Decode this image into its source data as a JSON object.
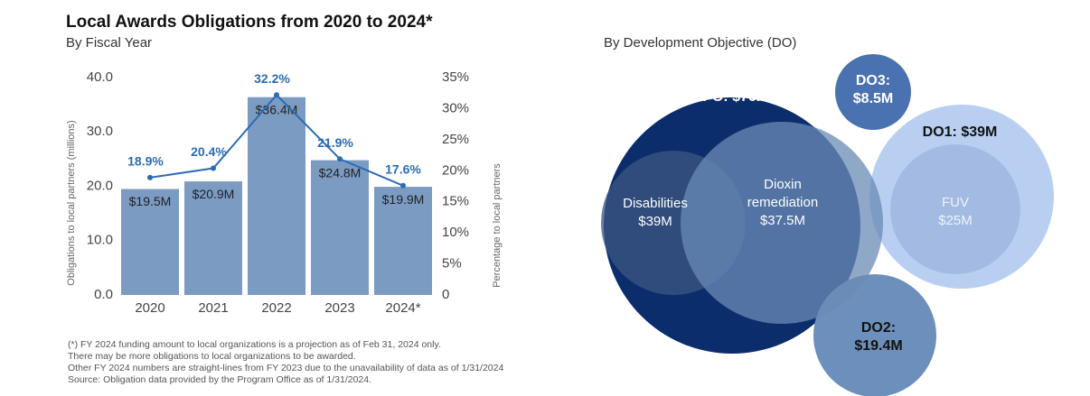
{
  "chart_data": [
    {
      "type": "bar_line",
      "title": "Local Awards Obligations from 2020 to 2024*",
      "subtitle": "By Fiscal Year",
      "y_label": "Obligations to local partners (millions)",
      "y2_label": "Percentage to local partners",
      "categories": [
        "2020",
        "2021",
        "2022",
        "2023",
        "2024*"
      ],
      "series": [
        {
          "name": "Obligations",
          "color": "#7b9bc3",
          "values": [
            19.5,
            20.9,
            36.4,
            24.8,
            19.9
          ],
          "value_labels": [
            "$19.5M",
            "$20.9M",
            "$36.4M",
            "$24.8M",
            "$19.9M"
          ]
        },
        {
          "name": "Percentage",
          "color": "#2b6cb3",
          "axis": "y2",
          "values": [
            18.9,
            20.4,
            32.2,
            21.9,
            17.6
          ],
          "value_labels": [
            "18.9%",
            "20.4%",
            "32.2%",
            "21.9%",
            "17.6%"
          ]
        }
      ],
      "ylim": [
        0,
        40
      ],
      "yticks": [
        {
          "value": 0,
          "label": "0.0"
        },
        {
          "value": 10,
          "label": "10.0"
        },
        {
          "value": 20,
          "label": "20.0"
        },
        {
          "value": 30,
          "label": "30.0"
        },
        {
          "value": 40,
          "label": "40.0"
        }
      ],
      "y2lim": [
        0,
        35
      ],
      "y2ticks": [
        0,
        {
          "value": 5,
          "label": "5%"
        },
        {
          "value": 10,
          "label": "10%"
        },
        {
          "value": 15,
          "label": "15%"
        },
        {
          "value": 20,
          "label": "20%"
        },
        {
          "value": 25,
          "label": "25%"
        },
        {
          "value": 30,
          "label": "30%"
        },
        {
          "value": 35,
          "label": "35%"
        }
      ],
      "notes": [
        "(*) FY 2024 funding amount to local organizations is a projection as of Feb 31, 2024 only.",
        "There may be more obligations to local organizations to be awarded.",
        "Other FY 2024 numbers are straight-lines from FY 2023 due to the unavailability of data as of 1/31/2024",
        "Source: Obligation data provided by the Program Office as of 1/31/2024."
      ]
    },
    {
      "type": "bubble",
      "title": "By Development Objective (DO)",
      "labels": [
        "SPO:",
        "DO3:",
        "DO1:",
        "DO2:",
        "Disabilities",
        "Dioxin remediation",
        "FUV"
      ],
      "values": [
        76.5,
        8.5,
        39,
        19.4,
        39,
        37.5,
        25
      ],
      "value_labels": [
        "$76.5M",
        "$8.5M",
        "$39M",
        "$19.4M",
        "$39M",
        "$37.5M",
        "$25M"
      ],
      "colors": [
        "#0c2d6b",
        "#4b72b0",
        "#b9cff2",
        "#6d8fbb",
        "#3b5782",
        "#6a8bb6",
        "#9db5de"
      ]
    }
  ]
}
